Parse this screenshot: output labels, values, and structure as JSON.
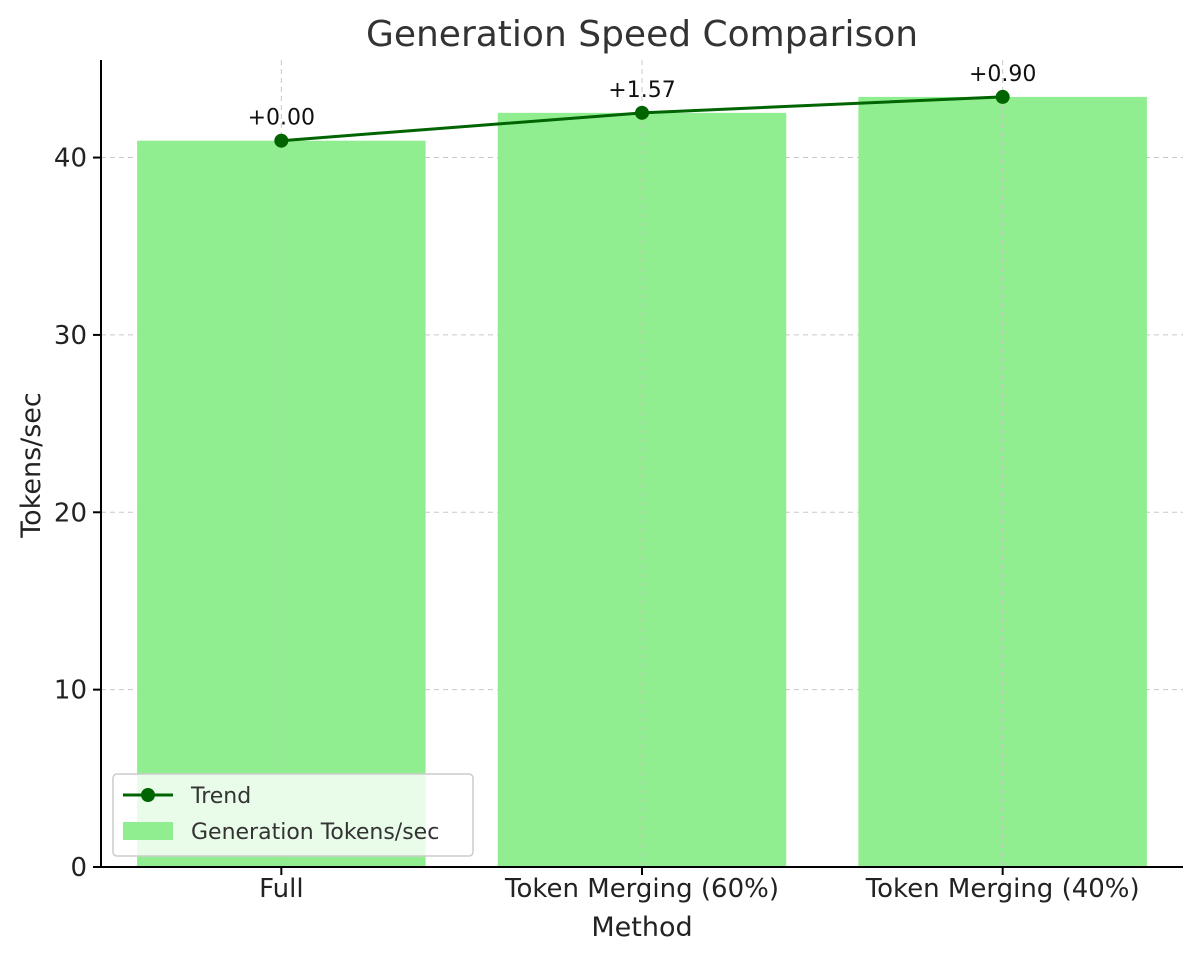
{
  "chart_data": {
    "type": "bar",
    "title": "Generation Speed Comparison",
    "xlabel": "Method",
    "ylabel": "Tokens/sec",
    "categories": [
      "Full",
      "Token Merging (60%)",
      "Token Merging (40%)"
    ],
    "series": [
      {
        "name": "Generation Tokens/sec",
        "type": "bar",
        "values": [
          40.95,
          42.52,
          43.42
        ],
        "color": "#90ee90"
      },
      {
        "name": "Trend",
        "type": "line",
        "values": [
          40.95,
          42.52,
          43.42
        ],
        "color": "#006400",
        "marker": "circle"
      }
    ],
    "annotations": [
      "+0.00",
      "+1.57",
      "+0.90"
    ],
    "ylim": [
      0,
      45.5
    ],
    "yticks": [
      0,
      10,
      20,
      30,
      40
    ],
    "grid": true,
    "legend": {
      "placement": "lower-left",
      "entries": [
        "Trend",
        "Generation Tokens/sec"
      ]
    }
  }
}
